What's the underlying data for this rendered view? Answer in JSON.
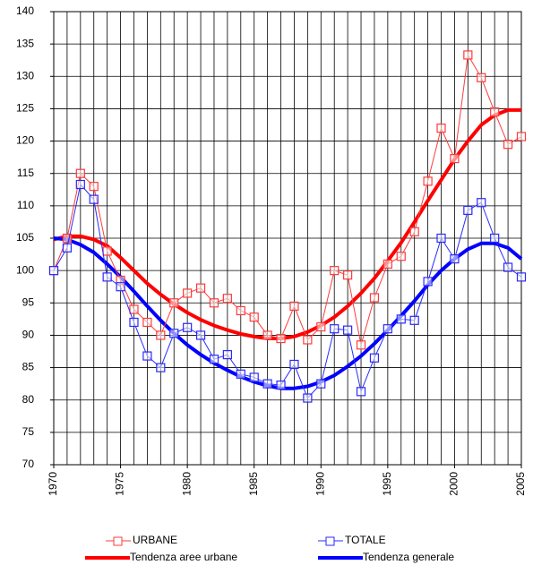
{
  "chart_data": {
    "type": "line",
    "x": [
      1970,
      1971,
      1972,
      1973,
      1974,
      1975,
      1976,
      1977,
      1978,
      1979,
      1980,
      1981,
      1982,
      1983,
      1984,
      1985,
      1986,
      1987,
      1988,
      1989,
      1990,
      1991,
      1992,
      1993,
      1994,
      1995,
      1996,
      1997,
      1998,
      1999,
      2000,
      2001,
      2002,
      2003,
      2004,
      2005
    ],
    "series": [
      {
        "name": "URBANE",
        "color": "#ff3b3b",
        "marker": "square",
        "line_width": 1,
        "values": [
          100,
          105,
          115,
          113,
          103,
          98.5,
          94,
          92,
          90,
          95,
          96.5,
          97.3,
          95,
          95.7,
          93.8,
          92.8,
          90,
          89.5,
          94.5,
          89.3,
          91.3,
          100,
          99.3,
          88.5,
          95.8,
          101,
          102.2,
          106,
          113.8,
          122,
          117.3,
          133.3,
          129.8,
          124.5,
          119.5,
          120.7
        ]
      },
      {
        "name": "TOTALE",
        "color": "#2a2aff",
        "marker": "square",
        "line_width": 1,
        "values": [
          100,
          103.5,
          113.3,
          111,
          99,
          97.5,
          92,
          86.8,
          85,
          90.3,
          91.2,
          90,
          86.3,
          87,
          84,
          83.5,
          82.5,
          82.3,
          85.5,
          80.3,
          82.5,
          91,
          90.8,
          81.3,
          86.5,
          91,
          92.5,
          92.3,
          98.3,
          105,
          101.8,
          109.3,
          110.5,
          105,
          100.5,
          99
        ]
      },
      {
        "name": "Tendenza aree urbane",
        "color": "#ff0000",
        "line_width": 4,
        "values": [
          104.8,
          105.3,
          105.3,
          104.8,
          103.8,
          102,
          100,
          98,
          96.3,
          94.8,
          93.5,
          92.4,
          91.5,
          90.8,
          90.2,
          89.8,
          89.5,
          89.5,
          89.8,
          90.5,
          91.5,
          92.8,
          94.5,
          96.5,
          98.8,
          101.5,
          104.3,
          107.5,
          110.8,
          114,
          117.2,
          120,
          122.5,
          124,
          124.8,
          124.8
        ]
      },
      {
        "name": "Tendenza generale",
        "color": "#0000ff",
        "line_width": 4,
        "values": [
          105,
          104.8,
          104,
          102.8,
          101,
          99,
          96.8,
          94.5,
          92.3,
          90.3,
          88.5,
          87,
          85.7,
          84.6,
          83.6,
          82.8,
          82.2,
          81.8,
          81.8,
          82.1,
          82.8,
          83.8,
          85.2,
          86.8,
          88.7,
          90.8,
          93,
          95.3,
          97.8,
          100,
          101.8,
          103.3,
          104.2,
          104.2,
          103.5,
          101.8
        ]
      }
    ],
    "xlim": [
      1970,
      2005
    ],
    "xticks": [
      1970,
      1975,
      1980,
      1985,
      1990,
      1995,
      2000,
      2005
    ],
    "ylim": [
      70,
      140
    ],
    "yticks": [
      70,
      75,
      80,
      85,
      90,
      95,
      100,
      105,
      110,
      115,
      120,
      125,
      130,
      135,
      140
    ],
    "grid": true,
    "legend": "bottom"
  }
}
